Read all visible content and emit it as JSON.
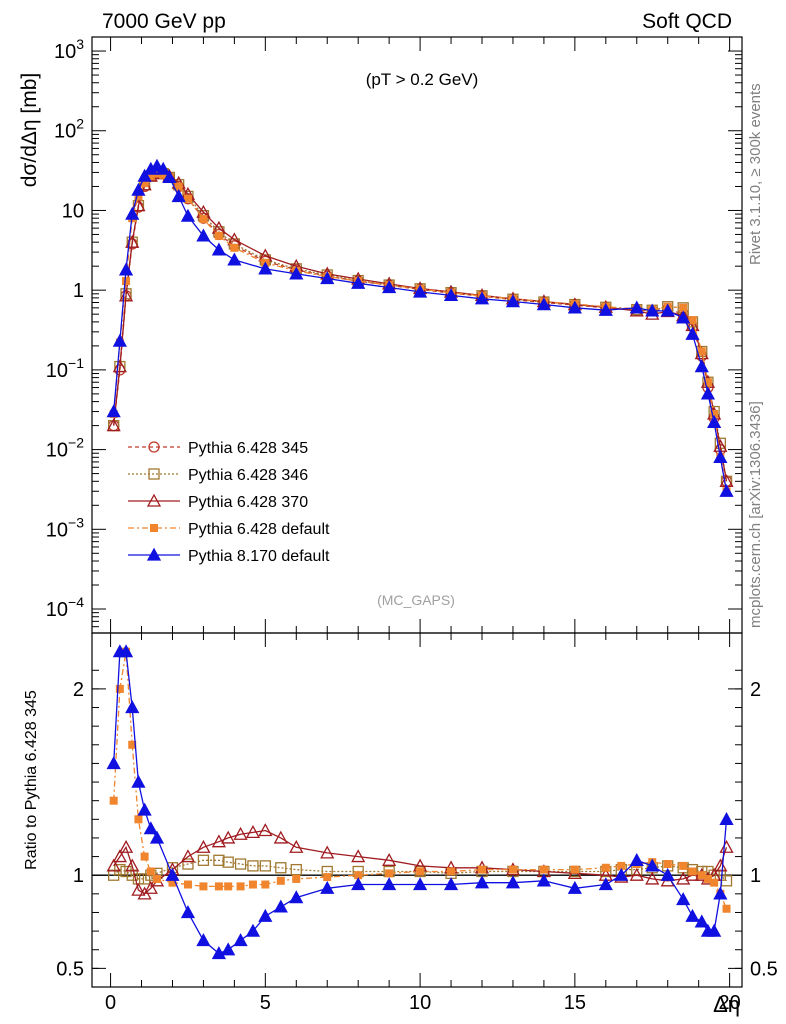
{
  "header": {
    "left": "7000 GeV pp",
    "right": "Soft QCD"
  },
  "side_text": {
    "rivet": "Rivet 3.1.10, ≥ 300k events",
    "mcplots": "mcplots.cern.ch [arXiv:1306.3436]"
  },
  "chart_data": [
    {
      "type": "line",
      "panel": "main",
      "annotation": "(pT > 0.2 GeV)",
      "watermark": "(MC_GAPS)",
      "ylabel": "dσ/dΔη [mb]",
      "yscale": "log",
      "ylim": [
        5e-05,
        1500
      ],
      "xlim": [
        -0.6,
        20.4
      ],
      "y_ticks": [
        "10^-4",
        "10^-3",
        "10^-2",
        "10^-1",
        "1",
        "10",
        "10^2",
        "10^3"
      ],
      "legend_position": "lower-left",
      "legend": [
        "Pythia 6.428 345",
        "Pythia 6.428 346",
        "Pythia 6.428 370",
        "Pythia 6.428 default",
        "Pythia 8.170 default"
      ],
      "x": [
        0.1,
        0.3,
        0.5,
        0.7,
        0.9,
        1.1,
        1.3,
        1.5,
        1.7,
        1.9,
        2.2,
        2.5,
        3.0,
        3.5,
        4.0,
        5.0,
        6.0,
        7.0,
        8.0,
        9.0,
        10.0,
        11.0,
        12.0,
        13.0,
        14.0,
        15.0,
        16.0,
        17.0,
        17.5,
        18.0,
        18.5,
        18.8,
        19.1,
        19.3,
        19.5,
        19.7,
        19.9
      ],
      "series": [
        {
          "name": "Pythia 6.428 345",
          "values": [
            0.02,
            0.1,
            0.85,
            3.8,
            11,
            20,
            27,
            30,
            29,
            26,
            20,
            14,
            8.0,
            5.0,
            3.6,
            2.3,
            1.8,
            1.5,
            1.3,
            1.15,
            1.02,
            0.92,
            0.84,
            0.76,
            0.7,
            0.65,
            0.6,
            0.56,
            0.55,
            0.58,
            0.5,
            0.35,
            0.15,
            0.06,
            0.025,
            0.01,
            0.004
          ]
        },
        {
          "name": "Pythia 6.428 346",
          "values": [
            0.02,
            0.11,
            0.9,
            4.0,
            11.5,
            21,
            27,
            30,
            29,
            26,
            21,
            15,
            8.6,
            5.4,
            3.8,
            2.4,
            1.85,
            1.55,
            1.32,
            1.16,
            1.04,
            0.93,
            0.85,
            0.77,
            0.71,
            0.66,
            0.61,
            0.57,
            0.56,
            0.62,
            0.6,
            0.4,
            0.17,
            0.07,
            0.03,
            0.012,
            0.004
          ]
        },
        {
          "name": "Pythia 6.428 370",
          "values": [
            0.02,
            0.11,
            0.85,
            4.0,
            11.5,
            21,
            27,
            30,
            29,
            27,
            22,
            16,
            9.5,
            6.0,
            4.3,
            2.7,
            2.0,
            1.6,
            1.38,
            1.2,
            1.05,
            0.95,
            0.86,
            0.78,
            0.72,
            0.66,
            0.61,
            0.55,
            0.5,
            0.54,
            0.48,
            0.36,
            0.16,
            0.07,
            0.028,
            0.011,
            0.004
          ]
        },
        {
          "name": "Pythia 6.428 default",
          "values": [
            0.028,
            0.22,
            1.3,
            8.0,
            15,
            22,
            27,
            29,
            28,
            26,
            20,
            14,
            7.8,
            4.8,
            3.4,
            2.2,
            1.75,
            1.48,
            1.3,
            1.16,
            1.04,
            0.93,
            0.85,
            0.78,
            0.72,
            0.67,
            0.62,
            0.58,
            0.57,
            0.62,
            0.6,
            0.42,
            0.17,
            0.07,
            0.028,
            0.008,
            0.003
          ]
        },
        {
          "name": "Pythia 8.170 default",
          "values": [
            0.03,
            0.23,
            1.8,
            9.0,
            18,
            27,
            33,
            36,
            33,
            26,
            15,
            8.5,
            4.8,
            3.2,
            2.4,
            1.85,
            1.6,
            1.4,
            1.22,
            1.08,
            0.95,
            0.86,
            0.78,
            0.72,
            0.66,
            0.6,
            0.56,
            0.6,
            0.55,
            0.55,
            0.45,
            0.28,
            0.11,
            0.05,
            0.022,
            0.008,
            0.003
          ]
        }
      ]
    },
    {
      "type": "line",
      "panel": "ratio",
      "ylabel": "Ratio to Pythia 6.428 345",
      "xlabel": "Δη",
      "ylim": [
        0.4,
        2.3
      ],
      "xlim": [
        -0.6,
        20.4
      ],
      "y_ticks": [
        "0.5",
        "1",
        "2"
      ],
      "x_ticks": [
        "0",
        "5",
        "10",
        "15",
        "20"
      ],
      "x": [
        0.1,
        0.3,
        0.5,
        0.7,
        0.9,
        1.1,
        1.3,
        1.5,
        2.0,
        2.5,
        3.0,
        3.5,
        3.8,
        4.2,
        4.6,
        5.0,
        5.5,
        6.0,
        7.0,
        8.0,
        9.0,
        10.0,
        11.0,
        12.0,
        13.0,
        14.0,
        15.0,
        16.0,
        16.5,
        17.0,
        17.5,
        18.0,
        18.5,
        18.8,
        19.1,
        19.3,
        19.5,
        19.7,
        19.9
      ],
      "series": [
        {
          "name": "Pythia 6.428 346",
          "values": [
            1.0,
            1.03,
            1.02,
            1.0,
            0.98,
            0.98,
            1.0,
            1.01,
            1.04,
            1.06,
            1.08,
            1.08,
            1.07,
            1.06,
            1.05,
            1.05,
            1.04,
            1.03,
            1.02,
            1.02,
            1.02,
            1.02,
            1.01,
            1.02,
            1.02,
            1.02,
            1.02,
            1.02,
            1.03,
            1.03,
            1.04,
            1.05,
            1.04,
            1.03,
            1.02,
            1.02,
            1.0,
            1.0,
            0.97
          ]
        },
        {
          "name": "Pythia 6.428 370",
          "values": [
            1.05,
            1.1,
            1.15,
            1.05,
            0.92,
            0.9,
            0.93,
            0.97,
            1.03,
            1.1,
            1.15,
            1.18,
            1.2,
            1.22,
            1.23,
            1.24,
            1.2,
            1.15,
            1.12,
            1.1,
            1.08,
            1.05,
            1.04,
            1.04,
            1.03,
            1.02,
            1.01,
            1.0,
            0.99,
            1.0,
            0.98,
            0.97,
            0.98,
            1.0,
            1.0,
            0.98,
            1.0,
            1.05,
            1.15
          ]
        },
        {
          "name": "Pythia 6.428 default",
          "values": [
            1.4,
            2.0,
            2.2,
            1.7,
            1.3,
            1.1,
            1.02,
            0.98,
            0.96,
            0.95,
            0.94,
            0.94,
            0.94,
            0.94,
            0.95,
            0.95,
            0.97,
            0.98,
            0.99,
            1.0,
            1.01,
            1.02,
            1.02,
            1.03,
            1.03,
            1.03,
            1.03,
            1.04,
            1.05,
            1.06,
            1.07,
            1.06,
            1.05,
            1.02,
            1.0,
            0.98,
            0.96,
            0.9,
            0.82
          ]
        },
        {
          "name": "Pythia 8.170 default",
          "values": [
            1.6,
            2.2,
            2.2,
            1.9,
            1.5,
            1.35,
            1.25,
            1.2,
            1.0,
            0.8,
            0.65,
            0.58,
            0.6,
            0.65,
            0.7,
            0.78,
            0.83,
            0.88,
            0.93,
            0.95,
            0.95,
            0.95,
            0.95,
            0.96,
            0.96,
            0.97,
            0.93,
            0.95,
            1.0,
            1.08,
            1.05,
            1.0,
            0.87,
            0.78,
            0.75,
            0.7,
            0.7,
            0.9,
            1.3
          ]
        }
      ]
    }
  ]
}
